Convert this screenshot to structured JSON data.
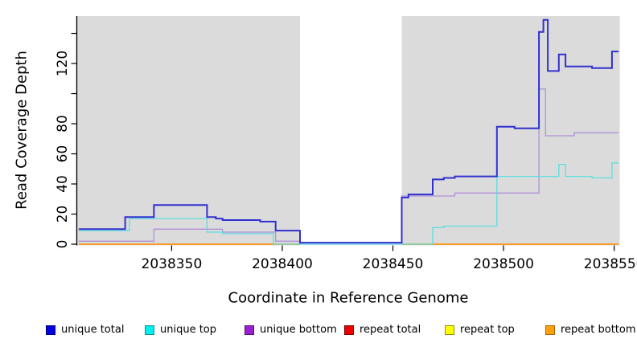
{
  "chart_data": {
    "type": "line",
    "subtype": "step-coverage-plot",
    "title": "",
    "xlabel": "Coordinate in Reference Genome",
    "ylabel": "Read Coverage Depth",
    "panel_color": "#dbdbdb",
    "gap_region": {
      "from": 2038408,
      "to": 2038454,
      "fill": "#ffffff"
    },
    "x_axis": {
      "range": [
        2038307.5,
        2038552.5
      ],
      "ticks": [
        2038350,
        2038400,
        2038450,
        2038500,
        2038550
      ],
      "tick_labels": [
        "2038350",
        "2038400",
        "2038450",
        "2038500",
        "2038550"
      ]
    },
    "y_axis": {
      "range": [
        0,
        151.5
      ],
      "ticks": [
        0,
        20,
        40,
        60,
        80,
        100,
        120,
        140
      ],
      "tick_labels": [
        "0",
        "20",
        "40",
        "60",
        "80",
        "",
        "120",
        ""
      ]
    },
    "grid": false,
    "legend_position": "bottom",
    "draw_order": [
      3,
      4,
      5,
      2,
      1,
      0
    ],
    "series": [
      {
        "name": "unique total",
        "swatch_fill": "#0000e0",
        "swatch_stroke": "#000080",
        "line_color": "#3030d0",
        "line_width": 2,
        "segments": [
          [
            [
              2038308,
              10
            ],
            [
              2038329,
              18
            ],
            [
              2038342,
              26
            ],
            [
              2038366,
              18
            ],
            [
              2038370,
              17
            ],
            [
              2038373,
              16
            ],
            [
              2038390,
              15
            ],
            [
              2038397,
              9
            ],
            [
              2038408,
              1
            ],
            [
              2038454,
              31
            ],
            [
              2038457,
              33
            ],
            [
              2038468,
              43
            ],
            [
              2038473,
              44
            ],
            [
              2038478,
              45
            ],
            [
              2038497,
              78
            ],
            [
              2038505,
              77
            ],
            [
              2038516,
              141
            ],
            [
              2038518,
              149
            ],
            [
              2038520,
              115
            ],
            [
              2038525,
              126
            ],
            [
              2038528,
              118
            ],
            [
              2038540,
              117
            ],
            [
              2038549,
              128
            ],
            [
              2038552,
              128
            ]
          ]
        ]
      },
      {
        "name": "unique top",
        "swatch_fill": "#00eeee",
        "swatch_stroke": "#0a8f8f",
        "line_color": "#5cdede",
        "line_width": 1.3,
        "segments": [
          [
            [
              2038308,
              9
            ],
            [
              2038331,
              17
            ],
            [
              2038366,
              8
            ],
            [
              2038373,
              7
            ],
            [
              2038396,
              0
            ],
            [
              2038468,
              11
            ],
            [
              2038473,
              12
            ],
            [
              2038497,
              45
            ],
            [
              2038525,
              53
            ],
            [
              2038528,
              45
            ],
            [
              2038540,
              44
            ],
            [
              2038549,
              54
            ],
            [
              2038552,
              54
            ]
          ]
        ]
      },
      {
        "name": "unique bottom",
        "swatch_fill": "#9a1fd1",
        "swatch_stroke": "#570f78",
        "line_color": "#b18fd9",
        "line_width": 1.3,
        "segments": [
          [
            [
              2038308,
              2
            ],
            [
              2038342,
              10
            ],
            [
              2038373,
              8
            ],
            [
              2038397,
              2
            ],
            [
              2038408,
              0
            ],
            [
              2038454,
              32
            ],
            [
              2038478,
              34
            ],
            [
              2038516,
              103
            ],
            [
              2038519,
              72
            ],
            [
              2038532,
              74
            ],
            [
              2038552,
              74
            ]
          ]
        ]
      },
      {
        "name": "repeat total",
        "swatch_fill": "#ee0000",
        "swatch_stroke": "#7a0000",
        "line_color": "#e00000",
        "line_width": 1.2,
        "segments": [
          [
            [
              2038308,
              0
            ],
            [
              2038408,
              0
            ]
          ],
          [
            [
              2038454,
              0
            ],
            [
              2038552,
              0
            ]
          ]
        ]
      },
      {
        "name": "repeat top",
        "swatch_fill": "#ffff00",
        "swatch_stroke": "#8f8f00",
        "line_color": "#ffff00",
        "line_width": 1.2,
        "segments": [
          [
            [
              2038308,
              0
            ],
            [
              2038408,
              0
            ]
          ],
          [
            [
              2038454,
              0
            ],
            [
              2038552,
              0
            ]
          ]
        ]
      },
      {
        "name": "repeat bottom",
        "swatch_fill": "#ffa010",
        "swatch_stroke": "#a86400",
        "line_color": "#ff9514",
        "line_width": 1.6,
        "segments": [
          [
            [
              2038308,
              0
            ],
            [
              2038408,
              0
            ]
          ],
          [
            [
              2038454,
              0
            ],
            [
              2038552,
              0
            ]
          ]
        ]
      }
    ]
  }
}
